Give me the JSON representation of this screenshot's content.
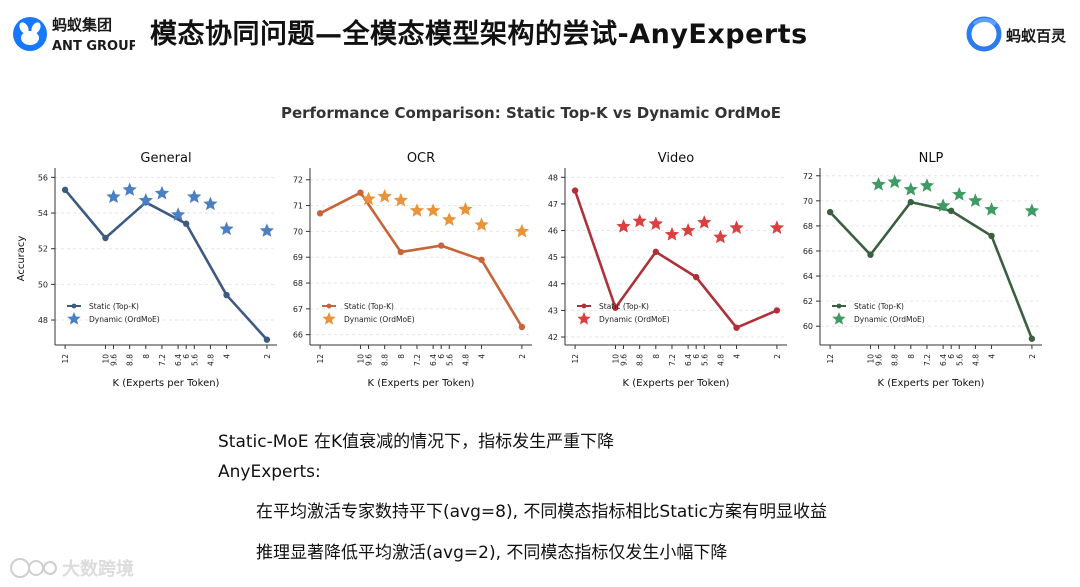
{
  "header": {
    "title": "模态协同问题—全模态模型架构的尝试-AnyExperts",
    "logo_left_cn": "蚂蚁集团",
    "logo_left_en": "ANT GROUP",
    "logo_right": "蚂蚁百灵"
  },
  "figure": {
    "suptitle": "Performance Comparison: Static Top-K vs Dynamic OrdMoE",
    "xlabel": "K (Experts per Token)",
    "ylabel": "Accuracy",
    "legend_static": "Static (Top-K)",
    "legend_dynamic": "Dynamic (OrdMoE)"
  },
  "chart_data": [
    {
      "type": "line",
      "title": "General",
      "color": "#3d5a80",
      "star_color": "#4a7fc1",
      "xlim": [
        12.5,
        1.5
      ],
      "ylim": [
        46.6,
        56.3
      ],
      "yticks": [
        48,
        50,
        52,
        54,
        56
      ],
      "xticks": [
        "12",
        "10",
        "9.6",
        "8.8",
        "8",
        "7.2",
        "6.4",
        "6",
        "5.6",
        "4.8",
        "4",
        "2"
      ],
      "xtick_values": [
        12,
        10,
        9.6,
        8.8,
        8,
        7.2,
        6.4,
        6,
        5.6,
        4.8,
        4,
        2
      ],
      "series": [
        {
          "name": "Static (Top-K)",
          "x": [
            12,
            10,
            8,
            6,
            4,
            2
          ],
          "y": [
            55.3,
            52.6,
            54.6,
            53.4,
            49.4,
            46.9
          ]
        },
        {
          "name": "Dynamic (OrdMoE)",
          "x": [
            9.6,
            8.8,
            8,
            7.2,
            6.4,
            5.6,
            4.8,
            4,
            2
          ],
          "y": [
            54.9,
            55.3,
            54.7,
            55.1,
            53.9,
            54.9,
            54.5,
            53.1,
            53.0
          ]
        }
      ]
    },
    {
      "type": "line",
      "title": "OCR",
      "color": "#c8643a",
      "star_color": "#e8943a",
      "xlim": [
        12.5,
        1.5
      ],
      "ylim": [
        65.6,
        72.3
      ],
      "yticks": [
        66,
        67,
        68,
        69,
        70,
        71,
        72
      ],
      "xticks": [
        "12",
        "10",
        "9.6",
        "8.8",
        "8",
        "7.2",
        "6.4",
        "6",
        "5.6",
        "4.8",
        "4",
        "2"
      ],
      "xtick_values": [
        12,
        10,
        9.6,
        8.8,
        8,
        7.2,
        6.4,
        6,
        5.6,
        4.8,
        4,
        2
      ],
      "series": [
        {
          "name": "Static (Top-K)",
          "x": [
            12,
            10,
            8,
            6,
            4,
            2
          ],
          "y": [
            70.7,
            71.5,
            69.2,
            69.45,
            68.9,
            66.3
          ]
        },
        {
          "name": "Dynamic (OrdMoE)",
          "x": [
            9.6,
            8.8,
            8,
            7.2,
            6.4,
            5.6,
            4.8,
            4,
            2
          ],
          "y": [
            71.25,
            71.35,
            71.2,
            70.8,
            70.8,
            70.45,
            70.85,
            70.25,
            70.0
          ]
        }
      ]
    },
    {
      "type": "line",
      "title": "Video",
      "color": "#b03038",
      "star_color": "#d9403f",
      "xlim": [
        12.5,
        1.5
      ],
      "ylim": [
        41.7,
        48.2
      ],
      "yticks": [
        42,
        43,
        44,
        45,
        46,
        47,
        48
      ],
      "xticks": [
        "12",
        "10",
        "9.6",
        "8.8",
        "8",
        "7.2",
        "6.4",
        "6",
        "5.6",
        "4.8",
        "4",
        "2"
      ],
      "xtick_values": [
        12,
        10,
        9.6,
        8.8,
        8,
        7.2,
        6.4,
        6,
        5.6,
        4.8,
        4,
        2
      ],
      "series": [
        {
          "name": "Static (Top-K)",
          "x": [
            12,
            10,
            8,
            6,
            4,
            2
          ],
          "y": [
            47.5,
            43.1,
            45.2,
            44.25,
            42.35,
            43.0
          ]
        },
        {
          "name": "Dynamic (OrdMoE)",
          "x": [
            9.6,
            8.8,
            8,
            7.2,
            6.4,
            5.6,
            4.8,
            4,
            2
          ],
          "y": [
            46.15,
            46.35,
            46.25,
            45.85,
            46.0,
            46.3,
            45.75,
            46.1,
            46.1
          ]
        }
      ]
    },
    {
      "type": "line",
      "title": "NLP",
      "color": "#3a6040",
      "star_color": "#3f9a63",
      "xlim": [
        12.5,
        1.5
      ],
      "ylim": [
        58.5,
        72.3
      ],
      "yticks": [
        60,
        62,
        64,
        66,
        68,
        70,
        72
      ],
      "xticks": [
        "12",
        "10",
        "9.6",
        "8.8",
        "8",
        "7.2",
        "6.4",
        "6",
        "5.6",
        "4.8",
        "4",
        "2"
      ],
      "xtick_values": [
        12,
        10,
        9.6,
        8.8,
        8,
        7.2,
        6.4,
        6,
        5.6,
        4.8,
        4,
        2
      ],
      "series": [
        {
          "name": "Static (Top-K)",
          "x": [
            12,
            10,
            8,
            6,
            4,
            2
          ],
          "y": [
            69.1,
            65.7,
            69.9,
            69.2,
            67.2,
            59.0
          ]
        },
        {
          "name": "Dynamic (OrdMoE)",
          "x": [
            9.6,
            8.8,
            8,
            7.2,
            6.4,
            5.6,
            4.8,
            4,
            2
          ],
          "y": [
            71.3,
            71.5,
            70.9,
            71.2,
            69.6,
            70.5,
            70.0,
            69.3,
            69.2
          ]
        }
      ]
    }
  ],
  "body_text": {
    "line_1": "Static-MoE 在K值衰减的情况下，指标发生严重下降",
    "line_2": "AnyExperts:",
    "line_3": "在平均激活专家数持平下(avg=8), 不同模态指标相比Static方案有明显收益",
    "line_4": "推理显著降低平均激活(avg=2), 不同模态指标仅发生小幅下降"
  },
  "watermark": "大数跨境"
}
